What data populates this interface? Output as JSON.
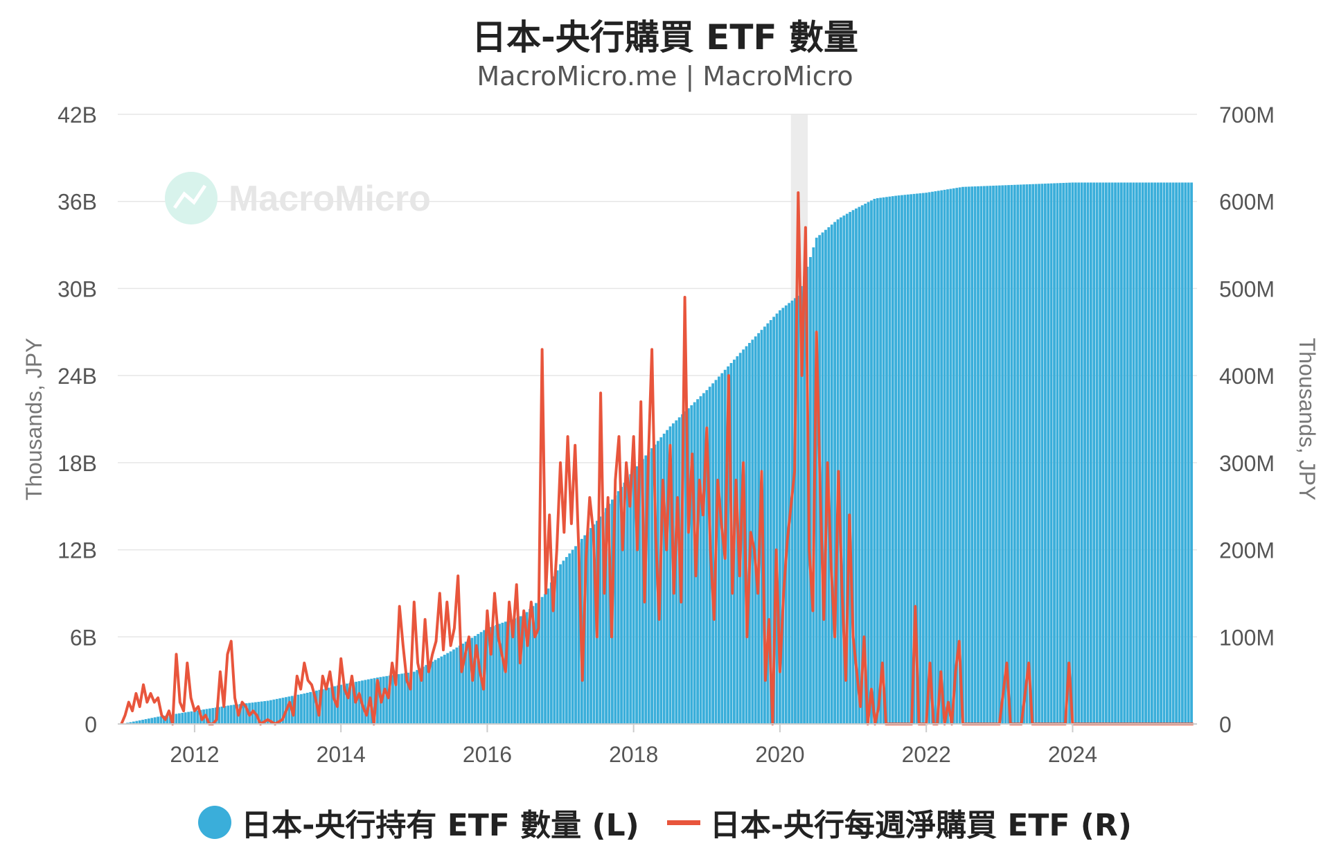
{
  "title": "日本-央行購買 ETF 數量",
  "subtitle": "MacroMicro.me | MacroMicro",
  "watermark": "MacroMicro",
  "colors": {
    "holdings": "#3AAEDA",
    "weekly": "#E8553C",
    "grid": "#e6e6e6",
    "recession": "#ececec"
  },
  "chart_data": {
    "type": "bar",
    "x_axis": {
      "ticks": [
        "2012",
        "2014",
        "2016",
        "2018",
        "2020",
        "2022",
        "2024"
      ],
      "range": [
        2010.95,
        2025.7
      ]
    },
    "y_left": {
      "label": "Thousands, JPY",
      "range": [
        0,
        42
      ],
      "ticks": [
        "0",
        "6B",
        "12B",
        "18B",
        "24B",
        "30B",
        "36B",
        "42B"
      ]
    },
    "y_right": {
      "label": "Thousands, JPY",
      "range": [
        0,
        700
      ],
      "ticks": [
        "0",
        "100M",
        "200M",
        "300M",
        "400M",
        "500M",
        "600M",
        "700M"
      ]
    },
    "shaded_period": [
      2020.15,
      2020.38
    ],
    "series": [
      {
        "name": "日本-央行持有 ETF 數量 (L)",
        "type": "bar",
        "axis": "left",
        "unit": "B JPY",
        "points": [
          [
            2011.0,
            0.0
          ],
          [
            2011.5,
            0.5
          ],
          [
            2012.0,
            0.9
          ],
          [
            2012.5,
            1.3
          ],
          [
            2013.0,
            1.6
          ],
          [
            2013.5,
            2.1
          ],
          [
            2014.0,
            2.7
          ],
          [
            2014.5,
            3.2
          ],
          [
            2015.0,
            3.6
          ],
          [
            2015.5,
            5.0
          ],
          [
            2016.0,
            6.6
          ],
          [
            2016.5,
            7.5
          ],
          [
            2016.8,
            9.0
          ],
          [
            2017.0,
            11.0
          ],
          [
            2017.5,
            14.0
          ],
          [
            2018.0,
            17.5
          ],
          [
            2018.5,
            20.5
          ],
          [
            2018.9,
            22.5
          ],
          [
            2019.0,
            23.0
          ],
          [
            2019.5,
            25.8
          ],
          [
            2020.0,
            28.5
          ],
          [
            2020.25,
            29.5
          ],
          [
            2020.5,
            33.5
          ],
          [
            2020.8,
            34.8
          ],
          [
            2021.0,
            35.4
          ],
          [
            2021.3,
            36.2
          ],
          [
            2021.6,
            36.4
          ],
          [
            2022.0,
            36.6
          ],
          [
            2022.5,
            37.0
          ],
          [
            2023.0,
            37.1
          ],
          [
            2023.5,
            37.2
          ],
          [
            2024.0,
            37.3
          ],
          [
            2025.65,
            37.3
          ]
        ]
      },
      {
        "name": "日本-央行每週淨購買 ETF (R)",
        "type": "line",
        "axis": "right",
        "unit": "M JPY",
        "points": [
          [
            2011.0,
            0
          ],
          [
            2011.05,
            10
          ],
          [
            2011.1,
            25
          ],
          [
            2011.15,
            15
          ],
          [
            2011.2,
            35
          ],
          [
            2011.25,
            20
          ],
          [
            2011.3,
            45
          ],
          [
            2011.35,
            25
          ],
          [
            2011.4,
            35
          ],
          [
            2011.45,
            25
          ],
          [
            2011.5,
            30
          ],
          [
            2011.55,
            10
          ],
          [
            2011.6,
            5
          ],
          [
            2011.65,
            15
          ],
          [
            2011.7,
            0
          ],
          [
            2011.75,
            80
          ],
          [
            2011.8,
            25
          ],
          [
            2011.85,
            15
          ],
          [
            2011.9,
            70
          ],
          [
            2011.95,
            30
          ],
          [
            2012.0,
            15
          ],
          [
            2012.05,
            20
          ],
          [
            2012.1,
            5
          ],
          [
            2012.15,
            10
          ],
          [
            2012.2,
            0
          ],
          [
            2012.25,
            0
          ],
          [
            2012.3,
            5
          ],
          [
            2012.35,
            60
          ],
          [
            2012.4,
            20
          ],
          [
            2012.45,
            80
          ],
          [
            2012.5,
            95
          ],
          [
            2012.55,
            30
          ],
          [
            2012.6,
            10
          ],
          [
            2012.65,
            25
          ],
          [
            2012.7,
            20
          ],
          [
            2012.75,
            10
          ],
          [
            2012.8,
            15
          ],
          [
            2012.85,
            10
          ],
          [
            2012.9,
            0
          ],
          [
            2013.0,
            5
          ],
          [
            2013.1,
            0
          ],
          [
            2013.2,
            5
          ],
          [
            2013.3,
            25
          ],
          [
            2013.35,
            10
          ],
          [
            2013.4,
            55
          ],
          [
            2013.45,
            40
          ],
          [
            2013.5,
            70
          ],
          [
            2013.55,
            50
          ],
          [
            2013.6,
            45
          ],
          [
            2013.65,
            30
          ],
          [
            2013.7,
            10
          ],
          [
            2013.75,
            55
          ],
          [
            2013.8,
            40
          ],
          [
            2013.85,
            60
          ],
          [
            2013.9,
            30
          ],
          [
            2013.95,
            20
          ],
          [
            2014.0,
            75
          ],
          [
            2014.05,
            40
          ],
          [
            2014.1,
            30
          ],
          [
            2014.15,
            55
          ],
          [
            2014.2,
            25
          ],
          [
            2014.25,
            35
          ],
          [
            2014.3,
            20
          ],
          [
            2014.35,
            10
          ],
          [
            2014.4,
            30
          ],
          [
            2014.45,
            0
          ],
          [
            2014.5,
            50
          ],
          [
            2014.55,
            25
          ],
          [
            2014.6,
            40
          ],
          [
            2014.65,
            30
          ],
          [
            2014.7,
            70
          ],
          [
            2014.75,
            45
          ],
          [
            2014.8,
            135
          ],
          [
            2014.85,
            90
          ],
          [
            2014.9,
            50
          ],
          [
            2014.95,
            40
          ],
          [
            2015.0,
            140
          ],
          [
            2015.05,
            70
          ],
          [
            2015.1,
            50
          ],
          [
            2015.15,
            120
          ],
          [
            2015.2,
            60
          ],
          [
            2015.25,
            80
          ],
          [
            2015.3,
            95
          ],
          [
            2015.35,
            150
          ],
          [
            2015.4,
            85
          ],
          [
            2015.45,
            140
          ],
          [
            2015.5,
            90
          ],
          [
            2015.55,
            110
          ],
          [
            2015.6,
            170
          ],
          [
            2015.65,
            60
          ],
          [
            2015.7,
            80
          ],
          [
            2015.75,
            100
          ],
          [
            2015.8,
            50
          ],
          [
            2015.85,
            90
          ],
          [
            2015.9,
            60
          ],
          [
            2015.95,
            40
          ],
          [
            2016.0,
            130
          ],
          [
            2016.05,
            80
          ],
          [
            2016.1,
            150
          ],
          [
            2016.15,
            100
          ],
          [
            2016.2,
            80
          ],
          [
            2016.25,
            60
          ],
          [
            2016.3,
            140
          ],
          [
            2016.35,
            100
          ],
          [
            2016.4,
            160
          ],
          [
            2016.45,
            70
          ],
          [
            2016.5,
            130
          ],
          [
            2016.55,
            90
          ],
          [
            2016.6,
            140
          ],
          [
            2016.65,
            100
          ],
          [
            2016.7,
            110
          ],
          [
            2016.75,
            430
          ],
          [
            2016.8,
            150
          ],
          [
            2016.85,
            240
          ],
          [
            2016.9,
            130
          ],
          [
            2016.95,
            200
          ],
          [
            2017.0,
            300
          ],
          [
            2017.05,
            220
          ],
          [
            2017.1,
            330
          ],
          [
            2017.15,
            230
          ],
          [
            2017.2,
            320
          ],
          [
            2017.25,
            200
          ],
          [
            2017.3,
            50
          ],
          [
            2017.35,
            190
          ],
          [
            2017.4,
            260
          ],
          [
            2017.45,
            220
          ],
          [
            2017.5,
            100
          ],
          [
            2017.55,
            380
          ],
          [
            2017.6,
            150
          ],
          [
            2017.65,
            260
          ],
          [
            2017.7,
            100
          ],
          [
            2017.75,
            280
          ],
          [
            2017.8,
            330
          ],
          [
            2017.85,
            200
          ],
          [
            2017.9,
            300
          ],
          [
            2017.95,
            250
          ],
          [
            2018.0,
            330
          ],
          [
            2018.05,
            200
          ],
          [
            2018.1,
            370
          ],
          [
            2018.15,
            140
          ],
          [
            2018.2,
            300
          ],
          [
            2018.25,
            430
          ],
          [
            2018.3,
            220
          ],
          [
            2018.35,
            120
          ],
          [
            2018.4,
            280
          ],
          [
            2018.45,
            200
          ],
          [
            2018.5,
            320
          ],
          [
            2018.55,
            150
          ],
          [
            2018.6,
            260
          ],
          [
            2018.65,
            140
          ],
          [
            2018.7,
            490
          ],
          [
            2018.75,
            220
          ],
          [
            2018.8,
            310
          ],
          [
            2018.85,
            170
          ],
          [
            2018.9,
            280
          ],
          [
            2018.95,
            240
          ],
          [
            2019.0,
            340
          ],
          [
            2019.05,
            200
          ],
          [
            2019.1,
            120
          ],
          [
            2019.15,
            280
          ],
          [
            2019.2,
            230
          ],
          [
            2019.25,
            190
          ],
          [
            2019.3,
            400
          ],
          [
            2019.35,
            150
          ],
          [
            2019.4,
            280
          ],
          [
            2019.45,
            170
          ],
          [
            2019.5,
            300
          ],
          [
            2019.55,
            100
          ],
          [
            2019.6,
            220
          ],
          [
            2019.65,
            200
          ],
          [
            2019.7,
            150
          ],
          [
            2019.75,
            290
          ],
          [
            2019.8,
            50
          ],
          [
            2019.85,
            120
          ],
          [
            2019.9,
            0
          ],
          [
            2019.95,
            200
          ],
          [
            2020.0,
            60
          ],
          [
            2020.05,
            150
          ],
          [
            2020.1,
            210
          ],
          [
            2020.15,
            250
          ],
          [
            2020.2,
            290
          ],
          [
            2020.25,
            610
          ],
          [
            2020.3,
            400
          ],
          [
            2020.35,
            570
          ],
          [
            2020.4,
            200
          ],
          [
            2020.45,
            130
          ],
          [
            2020.5,
            450
          ],
          [
            2020.55,
            270
          ],
          [
            2020.6,
            120
          ],
          [
            2020.65,
            300
          ],
          [
            2020.7,
            180
          ],
          [
            2020.75,
            100
          ],
          [
            2020.8,
            290
          ],
          [
            2020.85,
            150
          ],
          [
            2020.9,
            50
          ],
          [
            2020.95,
            240
          ],
          [
            2021.0,
            100
          ],
          [
            2021.05,
            60
          ],
          [
            2021.1,
            20
          ],
          [
            2021.15,
            100
          ],
          [
            2021.2,
            0
          ],
          [
            2021.25,
            40
          ],
          [
            2021.3,
            0
          ],
          [
            2021.35,
            20
          ],
          [
            2021.4,
            70
          ],
          [
            2021.45,
            0
          ],
          [
            2021.5,
            0
          ],
          [
            2021.6,
            0
          ],
          [
            2021.7,
            0
          ],
          [
            2021.75,
            0
          ],
          [
            2021.8,
            0
          ],
          [
            2021.85,
            135
          ],
          [
            2021.9,
            0
          ],
          [
            2021.95,
            0
          ],
          [
            2022.0,
            0
          ],
          [
            2022.05,
            70
          ],
          [
            2022.1,
            0
          ],
          [
            2022.15,
            0
          ],
          [
            2022.2,
            60
          ],
          [
            2022.25,
            0
          ],
          [
            2022.3,
            25
          ],
          [
            2022.35,
            0
          ],
          [
            2022.4,
            60
          ],
          [
            2022.45,
            95
          ],
          [
            2022.5,
            0
          ],
          [
            2022.6,
            0
          ],
          [
            2022.7,
            0
          ],
          [
            2022.8,
            0
          ],
          [
            2022.9,
            0
          ],
          [
            2023.0,
            0
          ],
          [
            2023.1,
            70
          ],
          [
            2023.15,
            0
          ],
          [
            2023.2,
            0
          ],
          [
            2023.3,
            0
          ],
          [
            2023.4,
            70
          ],
          [
            2023.45,
            0
          ],
          [
            2023.5,
            0
          ],
          [
            2023.6,
            0
          ],
          [
            2023.7,
            0
          ],
          [
            2023.8,
            0
          ],
          [
            2023.9,
            0
          ],
          [
            2023.95,
            70
          ],
          [
            2024.0,
            0
          ],
          [
            2024.2,
            0
          ],
          [
            2024.5,
            0
          ],
          [
            2024.8,
            0
          ],
          [
            2025.0,
            0
          ],
          [
            2025.3,
            0
          ],
          [
            2025.65,
            0
          ]
        ]
      }
    ]
  }
}
